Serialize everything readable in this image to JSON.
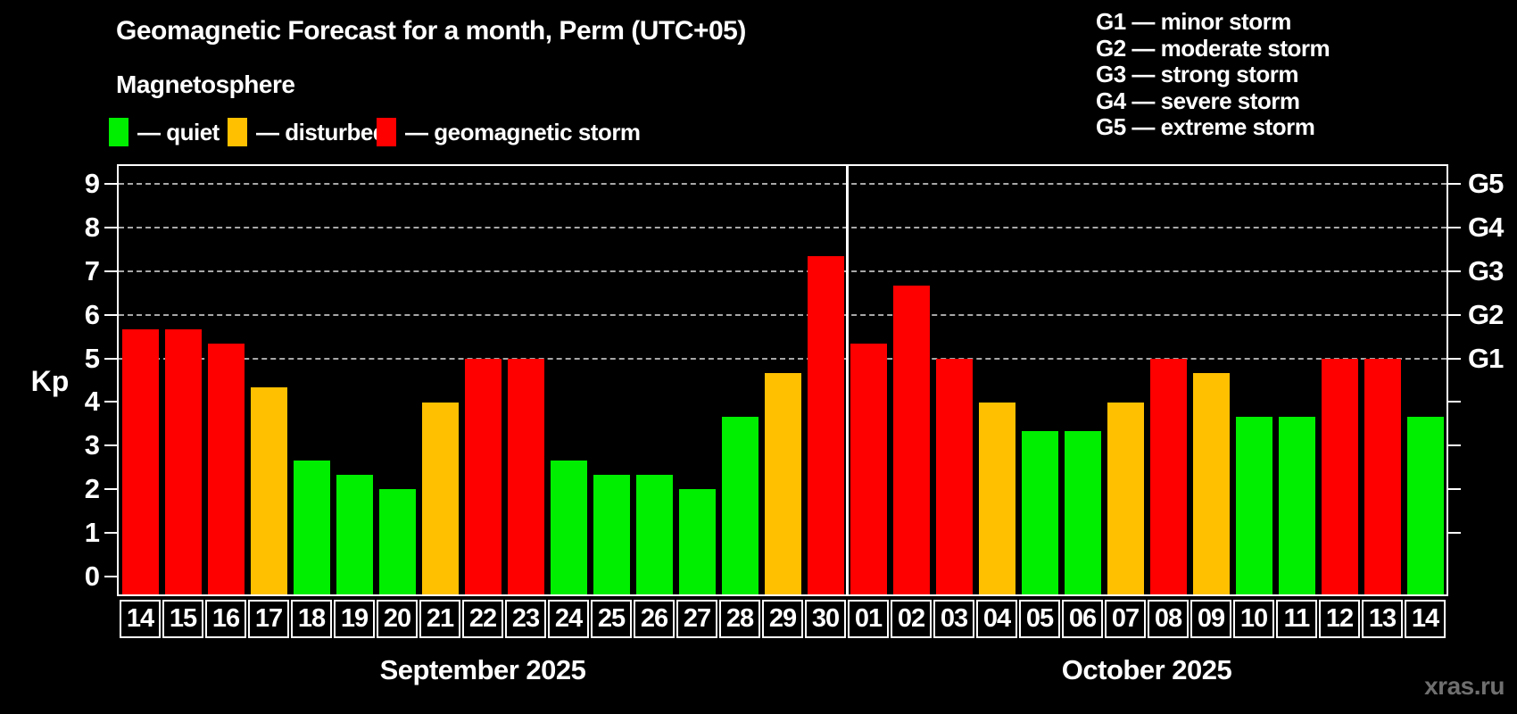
{
  "header": {
    "title": "Geomagnetic Forecast for a month, Perm (UTC+05)",
    "subtitle": "Magnetosphere"
  },
  "legend": {
    "items": [
      {
        "name": "quiet",
        "label": "— quiet",
        "color": "#00ee00"
      },
      {
        "name": "disturbed",
        "label": "— disturbed",
        "color": "#ffc000"
      },
      {
        "name": "geomagnetic-storm",
        "label": "— geomagnetic storm",
        "color": "#ff0000"
      }
    ]
  },
  "g_legend": {
    "lines": [
      "G1 — minor storm",
      "G2 — moderate storm",
      "G3 — strong storm",
      "G4 — severe storm",
      "G5 — extreme storm"
    ]
  },
  "watermark": "xras.ru",
  "chart_data": {
    "type": "bar",
    "title": "Geomagnetic Forecast for a month, Perm (UTC+05)",
    "ylabel": "Kp",
    "xlabel": "",
    "ylim": [
      -0.4,
      9.4
    ],
    "y_ticks": [
      0,
      1,
      2,
      3,
      4,
      5,
      6,
      7,
      8,
      9
    ],
    "right_ticks": [
      1,
      2,
      3,
      4,
      5,
      6,
      7,
      8,
      9
    ],
    "gridlines_at": [
      5,
      6,
      7,
      8,
      9
    ],
    "grid": "horizontal dashed lines at Kp 5–9 (G1–G5 levels)",
    "legend_position": "top-left",
    "colors": {
      "quiet": "#00ee00",
      "disturbed": "#ffc000",
      "storm": "#ff0000"
    },
    "g_levels": [
      {
        "label": "G1",
        "kp": 5
      },
      {
        "label": "G2",
        "kp": 6
      },
      {
        "label": "G3",
        "kp": 7
      },
      {
        "label": "G4",
        "kp": 8
      },
      {
        "label": "G5",
        "kp": 9
      }
    ],
    "months": [
      {
        "label": "September 2025",
        "days": [
          {
            "day": "14",
            "kp": 5.67,
            "level": "storm"
          },
          {
            "day": "15",
            "kp": 5.67,
            "level": "storm"
          },
          {
            "day": "16",
            "kp": 5.33,
            "level": "storm"
          },
          {
            "day": "17",
            "kp": 4.33,
            "level": "disturbed"
          },
          {
            "day": "18",
            "kp": 2.67,
            "level": "quiet"
          },
          {
            "day": "19",
            "kp": 2.33,
            "level": "quiet"
          },
          {
            "day": "20",
            "kp": 2,
            "level": "quiet"
          },
          {
            "day": "21",
            "kp": 4,
            "level": "disturbed"
          },
          {
            "day": "22",
            "kp": 5,
            "level": "storm"
          },
          {
            "day": "23",
            "kp": 5,
            "level": "storm"
          },
          {
            "day": "24",
            "kp": 2.67,
            "level": "quiet"
          },
          {
            "day": "25",
            "kp": 2.33,
            "level": "quiet"
          },
          {
            "day": "26",
            "kp": 2.33,
            "level": "quiet"
          },
          {
            "day": "27",
            "kp": 2,
            "level": "quiet"
          },
          {
            "day": "28",
            "kp": 3.67,
            "level": "quiet"
          },
          {
            "day": "29",
            "kp": 4.67,
            "level": "disturbed"
          },
          {
            "day": "30",
            "kp": 7.33,
            "level": "storm"
          }
        ]
      },
      {
        "label": "October 2025",
        "days": [
          {
            "day": "01",
            "kp": 5.33,
            "level": "storm"
          },
          {
            "day": "02",
            "kp": 6.67,
            "level": "storm"
          },
          {
            "day": "03",
            "kp": 5,
            "level": "storm"
          },
          {
            "day": "04",
            "kp": 4,
            "level": "disturbed"
          },
          {
            "day": "05",
            "kp": 3.33,
            "level": "quiet"
          },
          {
            "day": "06",
            "kp": 3.33,
            "level": "quiet"
          },
          {
            "day": "07",
            "kp": 4,
            "level": "disturbed"
          },
          {
            "day": "08",
            "kp": 5,
            "level": "storm"
          },
          {
            "day": "09",
            "kp": 4.67,
            "level": "disturbed"
          },
          {
            "day": "10",
            "kp": 3.67,
            "level": "quiet"
          },
          {
            "day": "11",
            "kp": 3.67,
            "level": "quiet"
          },
          {
            "day": "12",
            "kp": 5,
            "level": "storm"
          },
          {
            "day": "13",
            "kp": 5,
            "level": "storm"
          },
          {
            "day": "14",
            "kp": 3.67,
            "level": "quiet"
          }
        ]
      }
    ]
  }
}
